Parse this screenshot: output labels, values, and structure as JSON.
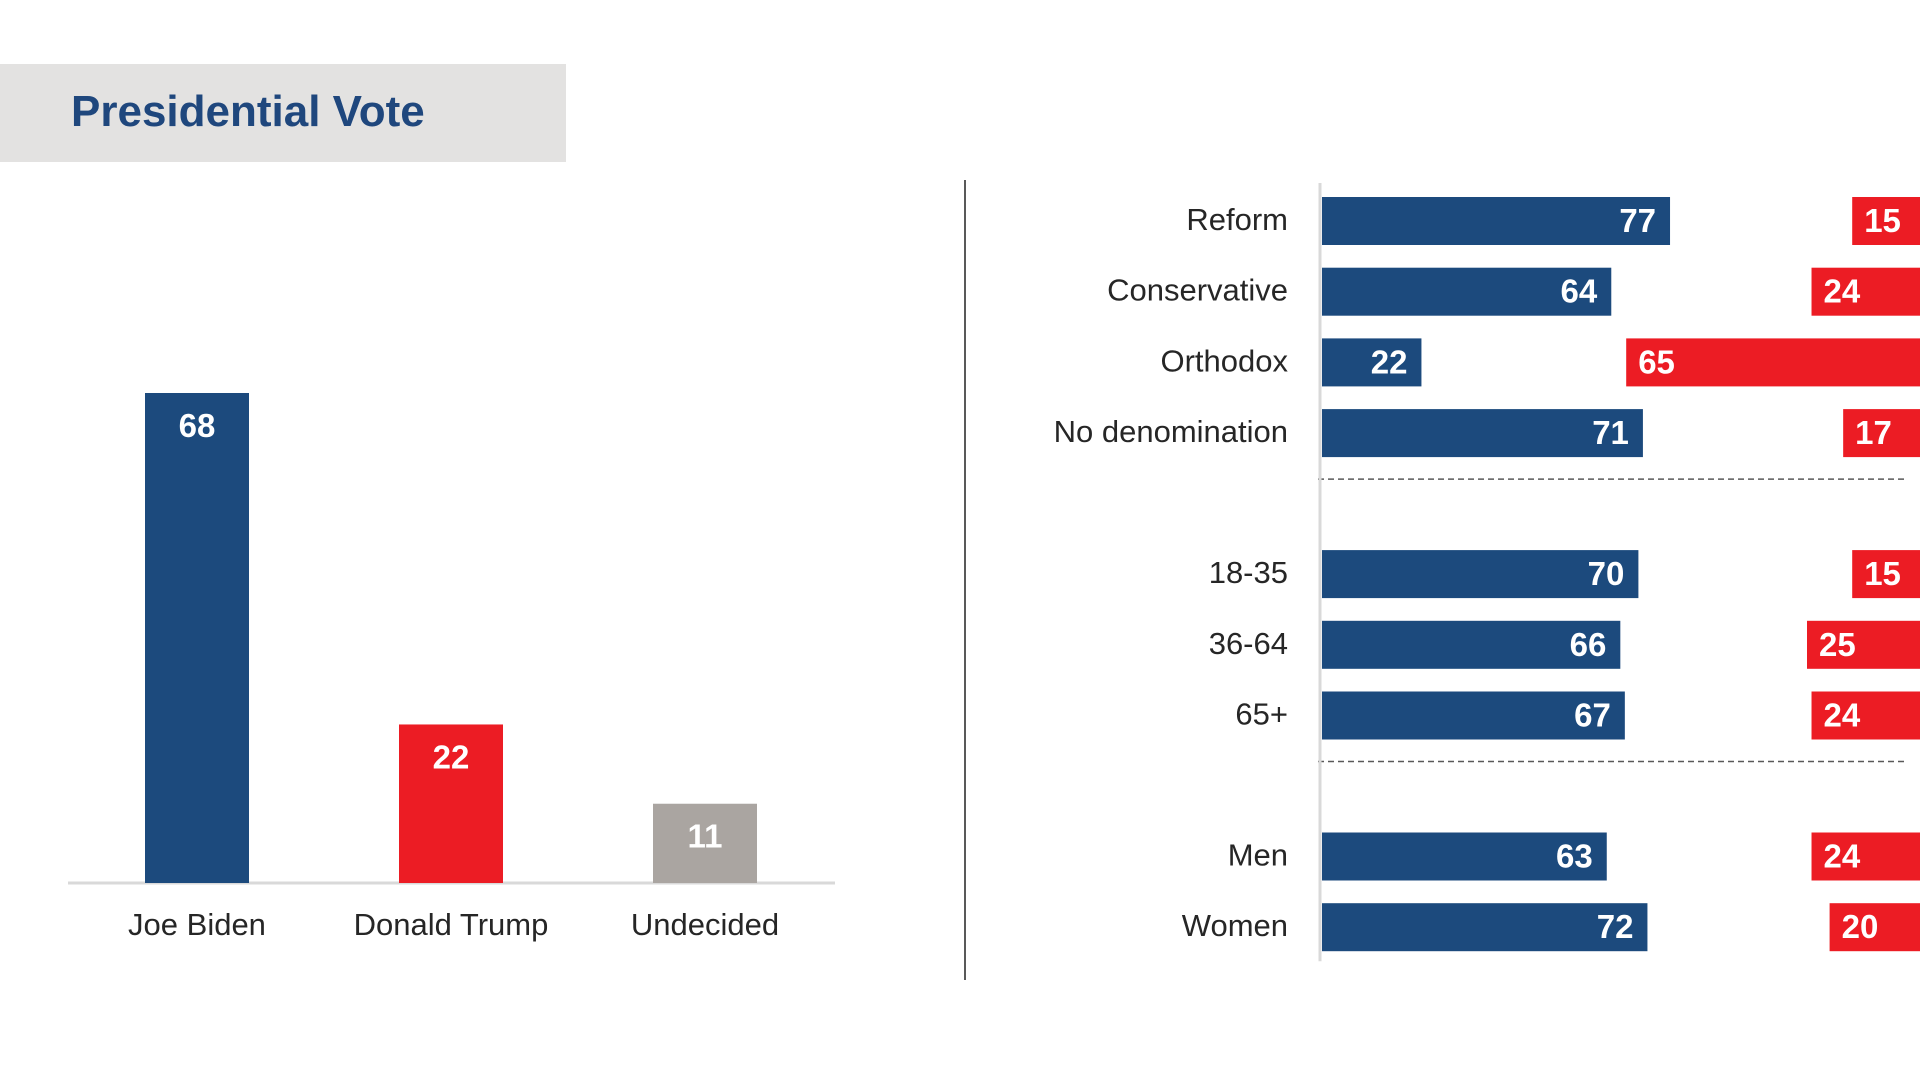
{
  "title": "Presidential Vote",
  "colors": {
    "biden": "#1c4a7d",
    "trump": "#ec1c24",
    "undecided": "#aaa5a1"
  },
  "chart_data": [
    {
      "type": "bar",
      "categories": [
        "Joe Biden",
        "Donald Trump",
        "Undecided"
      ],
      "values": [
        68,
        22,
        11
      ],
      "colors": [
        "#1c4a7d",
        "#ec1c24",
        "#aaa5a1"
      ],
      "ylim": [
        0,
        80
      ]
    },
    {
      "type": "bar",
      "orientation": "horizontal",
      "groups": [
        {
          "rows": [
            {
              "label": "Reform",
              "biden": 77,
              "trump": 15
            },
            {
              "label": "Conservative",
              "biden": 64,
              "trump": 24
            },
            {
              "label": "Orthodox",
              "biden": 22,
              "trump": 65
            },
            {
              "label": "No denomination",
              "biden": 71,
              "trump": 17
            }
          ]
        },
        {
          "rows": [
            {
              "label": "18-35",
              "biden": 70,
              "trump": 15
            },
            {
              "label": "36-64",
              "biden": 66,
              "trump": 25
            },
            {
              "label": "65+",
              "biden": 67,
              "trump": 24
            }
          ]
        },
        {
          "rows": [
            {
              "label": "Men",
              "biden": 63,
              "trump": 24
            },
            {
              "label": "Women",
              "biden": 72,
              "trump": 20
            }
          ]
        }
      ],
      "xlim": [
        0,
        100
      ]
    }
  ]
}
